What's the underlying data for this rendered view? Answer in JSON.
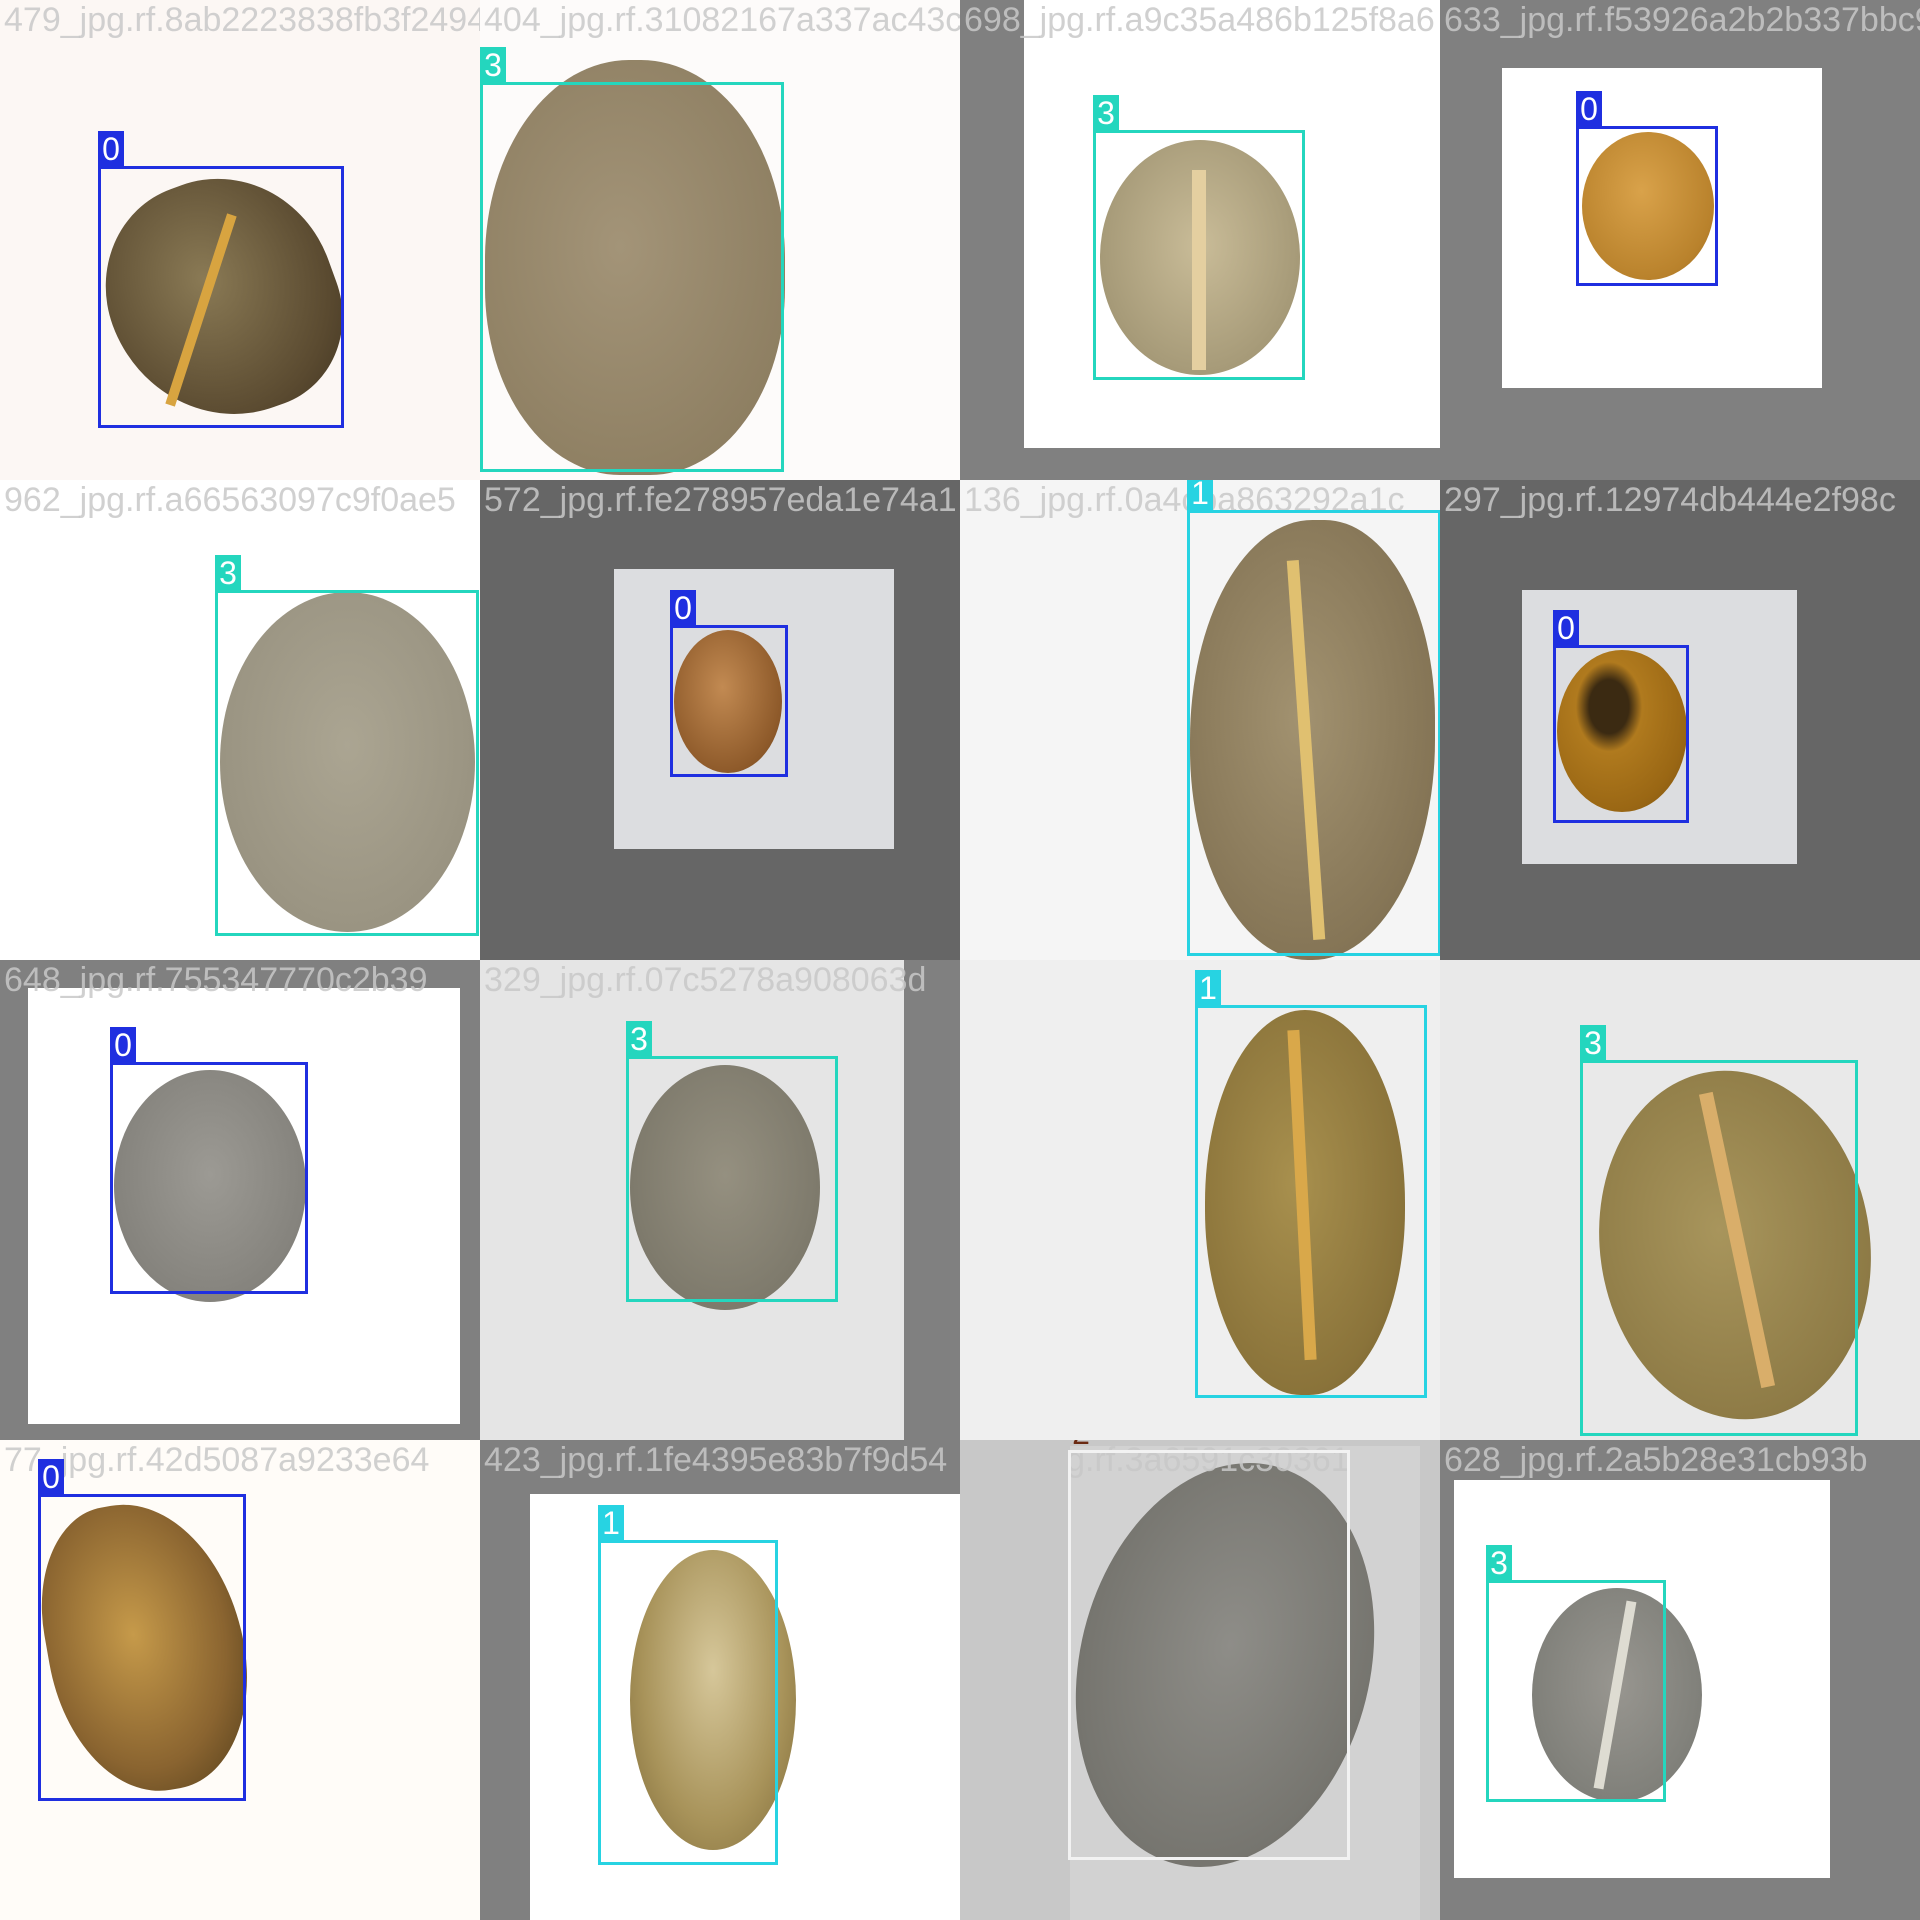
{
  "tiles": [
    {
      "filename": "479_jpg.rf.8ab2223838fb3f2494",
      "label": "0"
    },
    {
      "filename": "404_jpg.rf.31082167a337ac43c",
      "label": "3"
    },
    {
      "filename": "698_jpg.rf.a9c35a486b125f8a6",
      "label": "3"
    },
    {
      "filename": "633_jpg.rf.f53926a2b2b337bbc9",
      "label": "0"
    },
    {
      "filename": "962_jpg.rf.a66563097c9f0ae5",
      "label": "3"
    },
    {
      "filename": "572_jpg.rf.fe278957eda1e74a1",
      "label": "0"
    },
    {
      "filename": "136_jpg.rf.0a4cba863292a1c",
      "label": "1"
    },
    {
      "filename": "297_jpg.rf.12974db444e2f98c",
      "label": "0"
    },
    {
      "filename": "648_jpg.rf.755347770c2b39",
      "label": "0"
    },
    {
      "filename": "329_jpg.rf.07c5278a908063d",
      "label": "3"
    },
    {
      "filename": "",
      "label": "1"
    },
    {
      "filename": "",
      "label": "3"
    },
    {
      "filename": "77_jpg.rf.42d5087a9233e64",
      "label": "0"
    },
    {
      "filename": "423_jpg.rf.1fe4395e83b7f9d54",
      "label": "1"
    },
    {
      "filename": "474_jpg.rf.3a6591c30361",
      "label": "2"
    },
    {
      "filename": "628_jpg.rf.2a5b28e31cb93b",
      "label": "3"
    }
  ],
  "class_colors": {
    "0": "#1f2fe0",
    "1": "#27d3e2",
    "2": "#f2f2f2",
    "3": "#24d6be"
  },
  "icons": [
    "coffee-bean-image"
  ]
}
